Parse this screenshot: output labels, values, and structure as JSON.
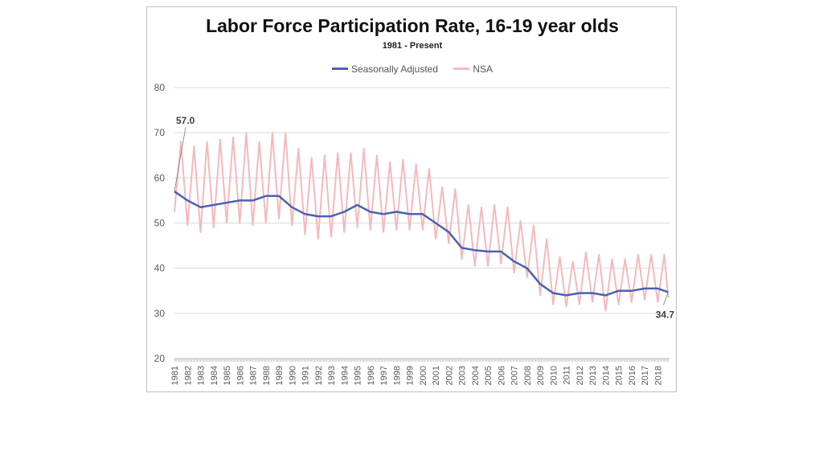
{
  "chart_data": {
    "type": "line",
    "title": "Labor Force Participation Rate, 16-19 year olds",
    "subtitle": "1981 - Present",
    "xlabel": "",
    "ylabel": "",
    "ylim": [
      20,
      80
    ],
    "yticks": [
      20,
      30,
      40,
      50,
      60,
      70,
      80
    ],
    "xlim": [
      1981,
      2018.9
    ],
    "xticks": [
      "1981",
      "1982",
      "1983",
      "1984",
      "1985",
      "1986",
      "1987",
      "1988",
      "1989",
      "1990",
      "1991",
      "1992",
      "1993",
      "1994",
      "1995",
      "1996",
      "1997",
      "1998",
      "1999",
      "2000",
      "2001",
      "2002",
      "2003",
      "2004",
      "2005",
      "2006",
      "2007",
      "2008",
      "2009",
      "2010",
      "2011",
      "2012",
      "2013",
      "2014",
      "2015",
      "2016",
      "2017",
      "2018"
    ],
    "grid": true,
    "legend_position": "top-center",
    "annotations": [
      {
        "text": "57.0",
        "x": 1981.0,
        "y": 57.0
      },
      {
        "text": "34.7",
        "x": 2018.8,
        "y": 34.7
      }
    ],
    "series": [
      {
        "name": "Seasonally Adjusted",
        "color": "#4a62b0",
        "x": [
          1981,
          1982,
          1983,
          1984,
          1985,
          1986,
          1987,
          1988,
          1989,
          1990,
          1991,
          1992,
          1993,
          1994,
          1995,
          1996,
          1997,
          1998,
          1999,
          2000,
          2001,
          2002,
          2003,
          2004,
          2005,
          2006,
          2007,
          2008,
          2009,
          2010,
          2011,
          2012,
          2013,
          2014,
          2015,
          2016,
          2017,
          2018,
          2018.8
        ],
        "values": [
          57.0,
          55.0,
          53.5,
          54.0,
          54.5,
          55.0,
          55.0,
          56.0,
          56.0,
          53.5,
          52.0,
          51.5,
          51.5,
          52.5,
          54.0,
          52.5,
          52.0,
          52.5,
          52.0,
          52.0,
          50.0,
          48.0,
          44.5,
          44.0,
          43.7,
          43.7,
          41.5,
          40.0,
          36.5,
          34.5,
          34.0,
          34.5,
          34.5,
          34.0,
          35.0,
          35.0,
          35.5,
          35.5,
          34.7
        ]
      },
      {
        "name": "NSA",
        "color": "#f4b9bb",
        "x": [
          1981,
          1981.5,
          1982,
          1982.5,
          1983,
          1983.5,
          1984,
          1984.5,
          1985,
          1985.5,
          1986,
          1986.5,
          1987,
          1987.5,
          1988,
          1988.5,
          1989,
          1989.5,
          1990,
          1990.5,
          1991,
          1991.5,
          1992,
          1992.5,
          1993,
          1993.5,
          1994,
          1994.5,
          1995,
          1995.5,
          1996,
          1996.5,
          1997,
          1997.5,
          1998,
          1998.5,
          1999,
          1999.5,
          2000,
          2000.5,
          2001,
          2001.5,
          2002,
          2002.5,
          2003,
          2003.5,
          2004,
          2004.5,
          2005,
          2005.5,
          2006,
          2006.5,
          2007,
          2007.5,
          2008,
          2008.5,
          2009,
          2009.5,
          2010,
          2010.5,
          2011,
          2011.5,
          2012,
          2012.5,
          2013,
          2013.5,
          2014,
          2014.5,
          2015,
          2015.5,
          2016,
          2016.5,
          2017,
          2017.5,
          2018,
          2018.5,
          2018.8
        ],
        "values": [
          52.5,
          68.0,
          49.5,
          67.0,
          48.0,
          68.0,
          49.0,
          68.5,
          50.0,
          69.0,
          50.0,
          70.0,
          49.5,
          68.0,
          50.0,
          70.0,
          51.0,
          70.0,
          49.5,
          66.5,
          47.5,
          64.5,
          46.5,
          65.0,
          47.0,
          65.5,
          48.0,
          65.5,
          49.0,
          66.5,
          48.5,
          65.0,
          48.0,
          63.5,
          48.5,
          64.0,
          48.5,
          63.0,
          48.5,
          62.0,
          46.5,
          58.0,
          45.5,
          57.5,
          42.0,
          54.0,
          40.5,
          53.5,
          40.5,
          54.0,
          41.0,
          53.5,
          39.0,
          50.5,
          38.0,
          49.5,
          34.0,
          46.5,
          32.0,
          42.5,
          31.5,
          41.5,
          32.0,
          43.5,
          32.5,
          43.0,
          30.5,
          42.0,
          32.0,
          42.0,
          32.5,
          43.0,
          33.0,
          43.0,
          32.5,
          43.0,
          33.5
        ]
      }
    ]
  }
}
